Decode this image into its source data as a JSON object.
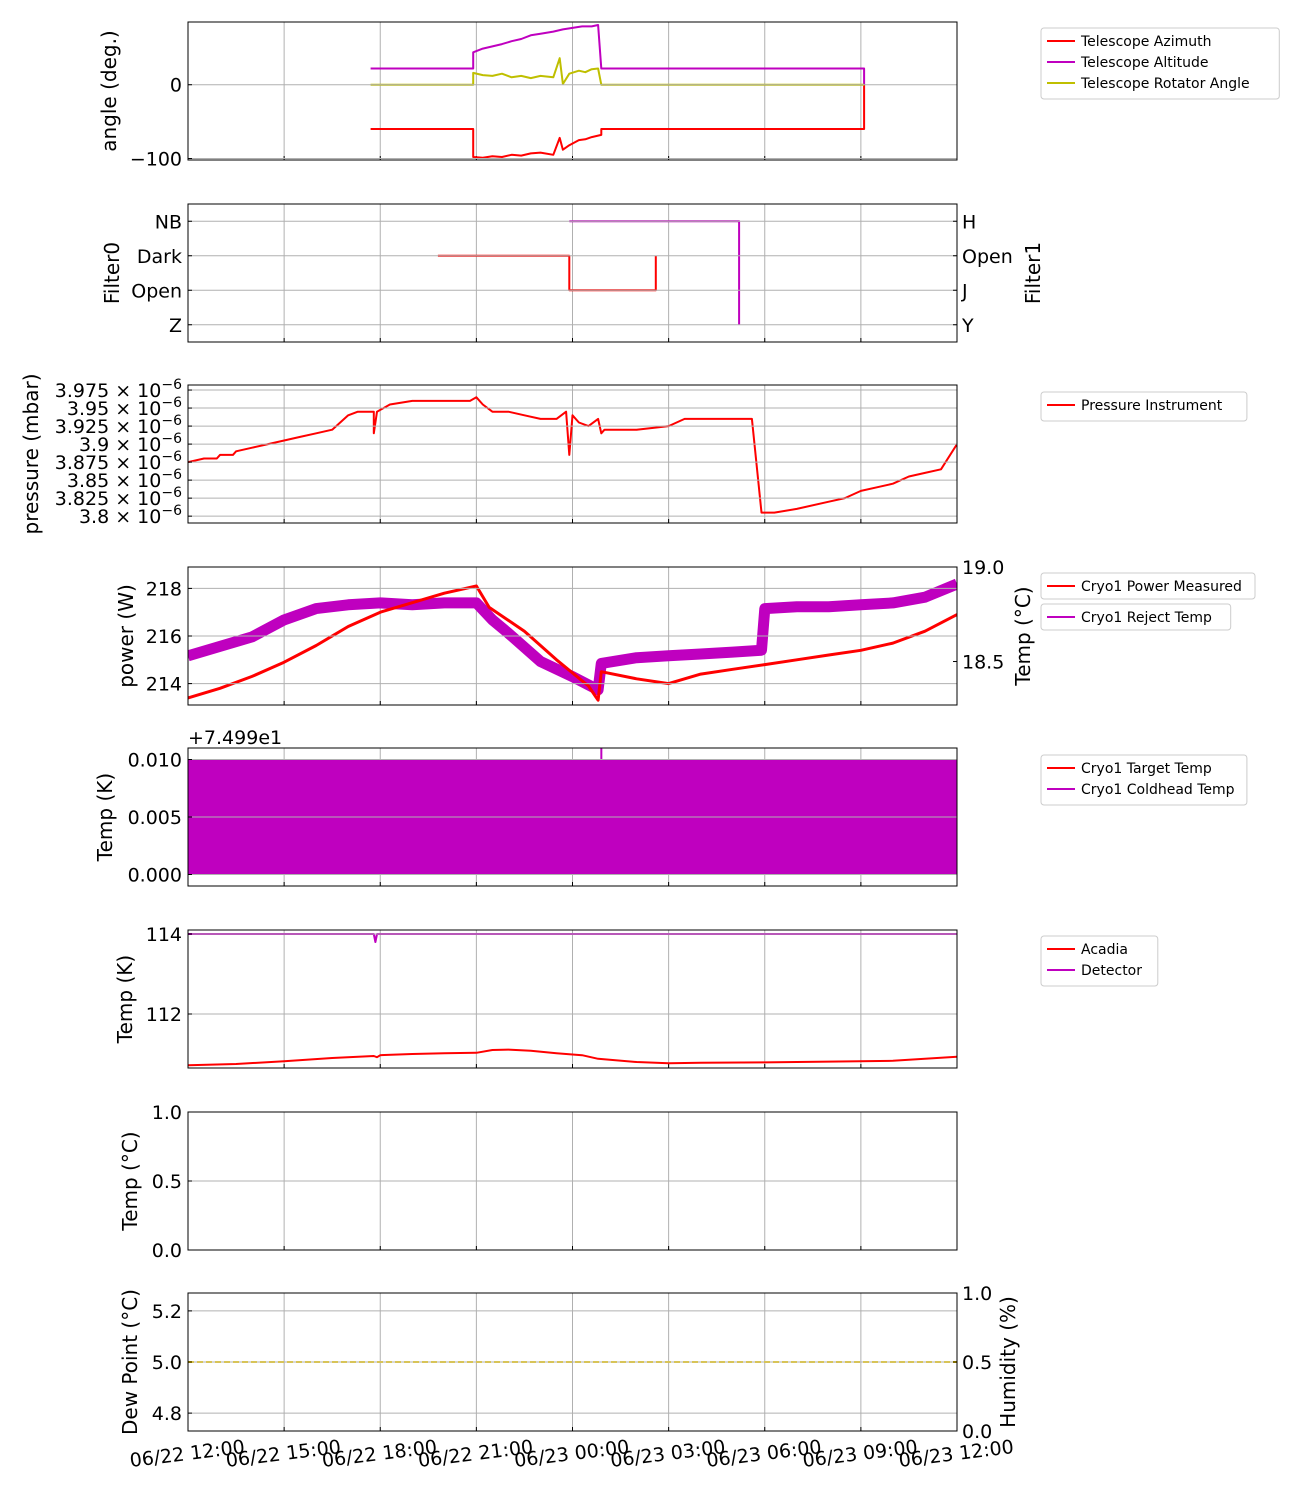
{
  "x_axis": {
    "tick_labels": [
      "06/22 12:00",
      "06/22 15:00",
      "06/22 18:00",
      "06/22 21:00",
      "06/23 00:00",
      "06/23 03:00",
      "06/23 06:00",
      "06/23 09:00",
      "06/23 12:00"
    ],
    "range_hours": [
      0,
      24
    ],
    "unit": "hours since 06/22 12:00"
  },
  "panels": [
    {
      "id": "p1",
      "ylabel": "angle (deg.)",
      "ytick_labels": [
        "0",
        "−100"
      ],
      "legend": [
        "Telescope Azimuth",
        "Telescope Altitude",
        "Telescope Rotator Angle"
      ]
    },
    {
      "id": "p2",
      "ylabel_left": "Filter0",
      "ylabel_right": "Filter1",
      "left_ticks": [
        "NB",
        "Dark",
        "Open",
        "Z"
      ],
      "right_ticks": [
        "H",
        "Open",
        "J",
        "Y"
      ]
    },
    {
      "id": "p3",
      "ylabel": "pressure (mbar)",
      "ytick_mantissas": [
        "3.975",
        "3.95",
        "3.925",
        "3.9",
        "3.875",
        "3.85",
        "3.825",
        "3.8"
      ],
      "ytick_multiplier": "× 10",
      "ytick_exponent": "−6",
      "legend": [
        "Pressure Instrument"
      ]
    },
    {
      "id": "p4",
      "ylabel_left": "power (W)",
      "ylabel_right": "Temp (°C)",
      "left_ticks": [
        "218",
        "216",
        "214"
      ],
      "right_ticks": [
        "19.0",
        "18.5"
      ],
      "legend": [
        "Cryo1 Power Measured",
        "Cryo1 Reject Temp"
      ]
    },
    {
      "id": "p5",
      "ylabel": "Temp (K)",
      "offset_label": "+7.499e1",
      "ytick_labels": [
        "0.010",
        "0.005",
        "0.000"
      ],
      "legend": [
        "Cryo1 Target Temp",
        "Cryo1 Coldhead Temp"
      ]
    },
    {
      "id": "p6",
      "ylabel": "Temp (K)",
      "ytick_labels": [
        "114",
        "112"
      ],
      "legend": [
        "Acadia",
        "Detector"
      ]
    },
    {
      "id": "p7",
      "ylabel": "Temp (°C)",
      "ytick_labels": [
        "1.0",
        "0.5",
        "0.0"
      ]
    },
    {
      "id": "p8",
      "ylabel_left": "Dew Point (°C)",
      "ylabel_right": "Humidity (%)",
      "left_ticks": [
        "5.2",
        "5.0",
        "4.8"
      ],
      "right_ticks": [
        "1.0",
        "0.5",
        "0.0"
      ]
    }
  ],
  "colors": {
    "red": "#ff0000",
    "magenta": "#bf00bf",
    "olive": "#bfbf00",
    "gold": "#ffd700",
    "grid": "#b0b0b0"
  },
  "chart_data": [
    {
      "type": "line",
      "ylabel": "angle (deg.)",
      "ylim": [
        -102,
        85
      ],
      "series": [
        {
          "name": "Telescope Azimuth",
          "color": "#ff0000",
          "points": [
            [
              5.7,
              -60
            ],
            [
              8.9,
              -60
            ],
            [
              8.9,
              -98
            ],
            [
              9.2,
              -99
            ],
            [
              9.5,
              -97
            ],
            [
              9.8,
              -98
            ],
            [
              10.1,
              -95
            ],
            [
              10.4,
              -96
            ],
            [
              10.7,
              -93
            ],
            [
              11.0,
              -92
            ],
            [
              11.4,
              -95
            ],
            [
              11.6,
              -72
            ],
            [
              11.7,
              -88
            ],
            [
              11.9,
              -82
            ],
            [
              12.2,
              -75
            ],
            [
              12.4,
              -74
            ],
            [
              12.6,
              -71
            ],
            [
              12.9,
              -68
            ],
            [
              12.9,
              -60
            ],
            [
              21.1,
              -60
            ],
            [
              21.1,
              0
            ]
          ]
        },
        {
          "name": "Telescope Altitude",
          "color": "#bf00bf",
          "points": [
            [
              5.7,
              22
            ],
            [
              8.9,
              22
            ],
            [
              8.9,
              44
            ],
            [
              9.2,
              49
            ],
            [
              9.5,
              52
            ],
            [
              9.8,
              55
            ],
            [
              10.1,
              59
            ],
            [
              10.4,
              62
            ],
            [
              10.7,
              67
            ],
            [
              11.0,
              69
            ],
            [
              11.4,
              72
            ],
            [
              11.7,
              75
            ],
            [
              12.0,
              77
            ],
            [
              12.3,
              79
            ],
            [
              12.6,
              79
            ],
            [
              12.8,
              81
            ],
            [
              12.8,
              81
            ],
            [
              12.9,
              22
            ],
            [
              21.1,
              22
            ],
            [
              21.1,
              0
            ]
          ]
        },
        {
          "name": "Telescope Rotator Angle",
          "color": "#bfbf00",
          "points": [
            [
              5.7,
              0
            ],
            [
              8.9,
              0
            ],
            [
              8.9,
              16
            ],
            [
              9.2,
              13
            ],
            [
              9.5,
              12
            ],
            [
              9.8,
              15
            ],
            [
              10.1,
              10
            ],
            [
              10.4,
              12
            ],
            [
              10.7,
              9
            ],
            [
              11.0,
              12
            ],
            [
              11.4,
              10
            ],
            [
              11.6,
              36
            ],
            [
              11.7,
              1
            ],
            [
              11.9,
              15
            ],
            [
              12.2,
              19
            ],
            [
              12.4,
              17
            ],
            [
              12.6,
              21
            ],
            [
              12.8,
              22
            ],
            [
              12.9,
              0
            ],
            [
              21.1,
              0
            ]
          ]
        }
      ]
    },
    {
      "type": "line",
      "note": "categorical levels: left axis Filter0 0=Z 1=Open 2=Dark 3=NB; right axis Filter1 0=Y 1=J 2=Open 3=H",
      "ylim": [
        -0.5,
        3.5
      ],
      "series": [
        {
          "name": "Filter0",
          "color": "#ff0000",
          "points": [
            [
              7.8,
              2
            ],
            [
              11.9,
              2
            ],
            [
              11.9,
              1
            ],
            [
              14.6,
              1
            ],
            [
              14.6,
              2
            ]
          ]
        },
        {
          "name": "Filter1",
          "color": "#bf00bf",
          "points": [
            [
              11.9,
              3
            ],
            [
              17.2,
              3
            ],
            [
              17.2,
              0
            ]
          ]
        }
      ]
    },
    {
      "type": "line",
      "ylabel": "pressure (mbar)",
      "ylim": [
        3.7905e-06,
        3.982e-06
      ],
      "series": [
        {
          "name": "Pressure Instrument",
          "color": "#ff0000",
          "points": [
            [
              0,
              3.875e-06
            ],
            [
              0.5,
              3.88e-06
            ],
            [
              0.9,
              3.88e-06
            ],
            [
              1.0,
              3.885e-06
            ],
            [
              1.4,
              3.885e-06
            ],
            [
              1.5,
              3.89e-06
            ],
            [
              2.0,
              3.895e-06
            ],
            [
              2.5,
              3.9e-06
            ],
            [
              3.0,
              3.905e-06
            ],
            [
              3.5,
              3.91e-06
            ],
            [
              4.0,
              3.915e-06
            ],
            [
              4.5,
              3.92e-06
            ],
            [
              5.0,
              3.94e-06
            ],
            [
              5.3,
              3.945e-06
            ],
            [
              5.8,
              3.945e-06
            ],
            [
              5.8,
              3.915e-06
            ],
            [
              5.9,
              3.945e-06
            ],
            [
              6.3,
              3.955e-06
            ],
            [
              7.0,
              3.96e-06
            ],
            [
              7.8,
              3.96e-06
            ],
            [
              8.8,
              3.96e-06
            ],
            [
              9.0,
              3.965e-06
            ],
            [
              9.2,
              3.955e-06
            ],
            [
              9.5,
              3.945e-06
            ],
            [
              10.0,
              3.945e-06
            ],
            [
              10.5,
              3.94e-06
            ],
            [
              11.0,
              3.935e-06
            ],
            [
              11.5,
              3.935e-06
            ],
            [
              11.8,
              3.945e-06
            ],
            [
              11.9,
              3.885e-06
            ],
            [
              12.0,
              3.94e-06
            ],
            [
              12.2,
              3.93e-06
            ],
            [
              12.5,
              3.925e-06
            ],
            [
              12.8,
              3.935e-06
            ],
            [
              12.9,
              3.915e-06
            ],
            [
              13.0,
              3.92e-06
            ],
            [
              14.0,
              3.92e-06
            ],
            [
              15.0,
              3.925e-06
            ],
            [
              15.5,
              3.935e-06
            ],
            [
              17.6,
              3.935e-06
            ],
            [
              17.9,
              3.805e-06
            ],
            [
              18.3,
              3.805e-06
            ],
            [
              19.0,
              3.81e-06
            ],
            [
              20.0,
              3.82e-06
            ],
            [
              20.5,
              3.825e-06
            ],
            [
              21.0,
              3.835e-06
            ],
            [
              21.5,
              3.84e-06
            ],
            [
              22.0,
              3.845e-06
            ],
            [
              22.5,
              3.855e-06
            ],
            [
              23.0,
              3.86e-06
            ],
            [
              23.5,
              3.865e-06
            ],
            [
              24.0,
              3.9e-06
            ]
          ]
        }
      ]
    },
    {
      "type": "line",
      "ylim_left": [
        213.1,
        218.9
      ],
      "ylim_right": [
        18.27,
        19.0
      ],
      "series": [
        {
          "name": "Cryo1 Power Measured",
          "axis": "left",
          "color": "#ff0000",
          "points": [
            [
              0,
              213.4
            ],
            [
              1,
              213.8
            ],
            [
              2,
              214.3
            ],
            [
              3,
              214.9
            ],
            [
              4,
              215.6
            ],
            [
              5,
              216.4
            ],
            [
              6,
              217.0
            ],
            [
              7,
              217.4
            ],
            [
              8,
              217.8
            ],
            [
              9,
              218.1
            ],
            [
              9.4,
              217.2
            ],
            [
              10.5,
              216.2
            ],
            [
              11.5,
              215.0
            ],
            [
              12.5,
              213.9
            ],
            [
              12.7,
              213.5
            ],
            [
              12.8,
              213.3
            ],
            [
              12.9,
              214.5
            ],
            [
              14,
              214.2
            ],
            [
              15,
              214.0
            ],
            [
              16,
              214.4
            ],
            [
              17,
              214.6
            ],
            [
              18,
              214.8
            ],
            [
              19,
              215.0
            ],
            [
              20,
              215.2
            ],
            [
              21,
              215.4
            ],
            [
              22,
              215.7
            ],
            [
              23,
              216.2
            ],
            [
              24,
              216.9
            ]
          ]
        },
        {
          "name": "Cryo1 Reject Temp",
          "axis": "right",
          "color": "#bf00bf",
          "points": [
            [
              0,
              18.53
            ],
            [
              1,
              18.58
            ],
            [
              2,
              18.63
            ],
            [
              3,
              18.72
            ],
            [
              4,
              18.78
            ],
            [
              5,
              18.8
            ],
            [
              6,
              18.81
            ],
            [
              7,
              18.8
            ],
            [
              8,
              18.81
            ],
            [
              9,
              18.81
            ],
            [
              9.5,
              18.72
            ],
            [
              10,
              18.65
            ],
            [
              11,
              18.5
            ],
            [
              12,
              18.42
            ],
            [
              12.8,
              18.35
            ],
            [
              12.9,
              18.49
            ],
            [
              14,
              18.52
            ],
            [
              15,
              18.53
            ],
            [
              16,
              18.54
            ],
            [
              17,
              18.55
            ],
            [
              17.9,
              18.56
            ],
            [
              18.0,
              18.78
            ],
            [
              19,
              18.79
            ],
            [
              20,
              18.79
            ],
            [
              21,
              18.8
            ],
            [
              22,
              18.81
            ],
            [
              23,
              18.84
            ],
            [
              24,
              18.91
            ]
          ]
        }
      ]
    },
    {
      "type": "line",
      "ylabel": "Temp (K)",
      "offset": 74.99,
      "ylim": [
        -0.001,
        0.011
      ],
      "series": [
        {
          "name": "Cryo1 Target Temp",
          "color": "#ff0000",
          "points": [
            [
              0,
              0
            ],
            [
              24,
              0
            ]
          ]
        },
        {
          "name": "Cryo1 Coldhead Temp",
          "color": "#bf00bf",
          "band": [
            0.0,
            0.01
          ],
          "points": [
            [
              0,
              0
            ],
            [
              24,
              0.01
            ]
          ]
        }
      ]
    },
    {
      "type": "line",
      "ylabel": "Temp (K)",
      "ylim": [
        110.65,
        114.1
      ],
      "series": [
        {
          "name": "Acadia",
          "color": "#ff0000",
          "points": [
            [
              0,
              110.72
            ],
            [
              1.5,
              110.75
            ],
            [
              3,
              110.82
            ],
            [
              4.5,
              110.9
            ],
            [
              5.8,
              110.95
            ],
            [
              5.9,
              110.92
            ],
            [
              6,
              110.97
            ],
            [
              7,
              111.0
            ],
            [
              8,
              111.02
            ],
            [
              9,
              111.03
            ],
            [
              9.5,
              111.1
            ],
            [
              10,
              111.11
            ],
            [
              10.7,
              111.08
            ],
            [
              11.5,
              111.02
            ],
            [
              12.3,
              110.97
            ],
            [
              12.8,
              110.88
            ],
            [
              14,
              110.8
            ],
            [
              15,
              110.77
            ],
            [
              16,
              110.78
            ],
            [
              18,
              110.79
            ],
            [
              20,
              110.81
            ],
            [
              22,
              110.83
            ],
            [
              24,
              110.93
            ]
          ]
        },
        {
          "name": "Detector",
          "color": "#bf00bf",
          "points": [
            [
              0,
              114.0
            ],
            [
              5.8,
              114.0
            ],
            [
              5.85,
              113.8
            ],
            [
              5.9,
              114.0
            ],
            [
              24,
              114.0
            ]
          ]
        }
      ]
    },
    {
      "type": "line",
      "ylabel": "Temp (°C)",
      "ylim": [
        0.0,
        1.0
      ],
      "series": []
    },
    {
      "type": "line",
      "ylim_left": [
        4.73,
        5.27
      ],
      "ylim_right": [
        0.0,
        1.0
      ],
      "series": [
        {
          "axis": "left",
          "color": "#ffd700",
          "style": "dashed",
          "points": [
            [
              0,
              5.0
            ],
            [
              24,
              5.0
            ]
          ]
        }
      ]
    }
  ]
}
